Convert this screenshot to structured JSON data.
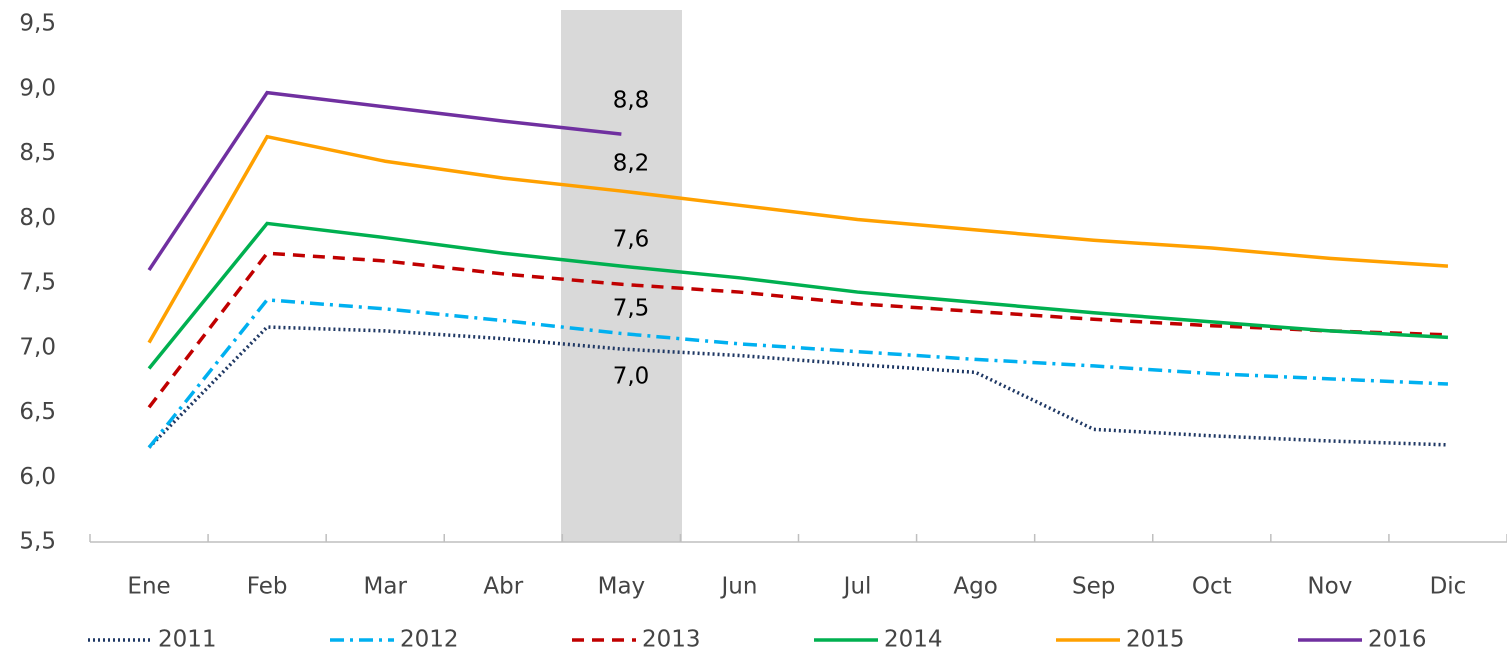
{
  "chart_data": {
    "type": "line",
    "categories": [
      "Ene",
      "Feb",
      "Mar",
      "Abr",
      "May",
      "Jun",
      "Jul",
      "Ago",
      "Sep",
      "Oct",
      "Nov",
      "Dic"
    ],
    "series": [
      {
        "name": "2011",
        "color": "#1f3864",
        "dash": "dotted",
        "values": [
          6.23,
          7.16,
          7.13,
          7.07,
          6.99,
          6.94,
          6.87,
          6.81,
          6.37,
          6.32,
          6.28,
          6.25
        ]
      },
      {
        "name": "2012",
        "color": "#00b0f0",
        "dash": "dash-dot",
        "values": [
          6.23,
          7.37,
          7.3,
          7.21,
          7.11,
          7.03,
          6.97,
          6.91,
          6.86,
          6.8,
          6.76,
          6.72
        ]
      },
      {
        "name": "2013",
        "color": "#c00000",
        "dash": "dashed",
        "values": [
          6.54,
          7.73,
          7.67,
          7.57,
          7.49,
          7.43,
          7.34,
          7.28,
          7.22,
          7.17,
          7.13,
          7.1
        ]
      },
      {
        "name": "2014",
        "color": "#00b050",
        "dash": "solid",
        "values": [
          6.84,
          7.96,
          7.85,
          7.73,
          7.63,
          7.54,
          7.43,
          7.35,
          7.27,
          7.2,
          7.13,
          7.08
        ]
      },
      {
        "name": "2015",
        "color": "#ffa000",
        "dash": "solid",
        "values": [
          7.04,
          8.63,
          8.44,
          8.31,
          8.21,
          8.1,
          7.99,
          7.91,
          7.83,
          7.77,
          7.69,
          7.63
        ]
      },
      {
        "name": "2016",
        "color": "#7030a0",
        "dash": "solid",
        "values": [
          7.6,
          8.97,
          8.86,
          8.75,
          8.65,
          null,
          null,
          null,
          null,
          null,
          null,
          null
        ]
      }
    ],
    "annotations": [
      "8,8",
      "8,2",
      "7,6",
      "7,5",
      "7,0"
    ],
    "ylim": [
      5.5,
      9.5
    ],
    "yticks": [
      {
        "value": 5.5,
        "label": "5,5"
      },
      {
        "value": 6.0,
        "label": "6,0"
      },
      {
        "value": 6.5,
        "label": "6,5"
      },
      {
        "value": 7.0,
        "label": "7,0"
      },
      {
        "value": 7.5,
        "label": "7,5"
      },
      {
        "value": 8.0,
        "label": "8,0"
      },
      {
        "value": 8.5,
        "label": "8,5"
      },
      {
        "value": 9.0,
        "label": "9,0"
      },
      {
        "value": 9.5,
        "label": "9,5"
      }
    ],
    "grid": false,
    "legend": "bottom"
  }
}
